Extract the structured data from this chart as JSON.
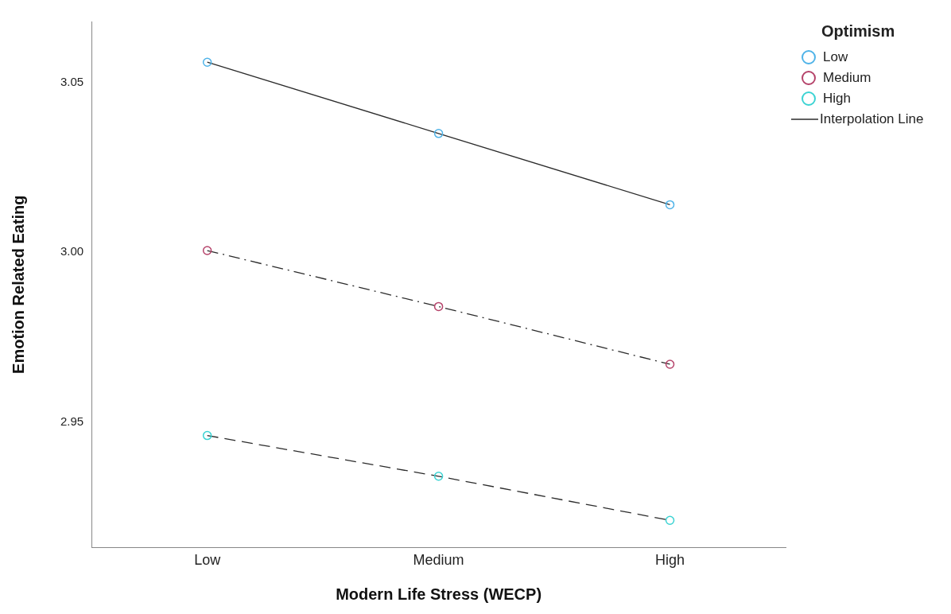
{
  "chart_data": {
    "type": "line",
    "xlabel": "Modern Life Stress (WECP)",
    "ylabel": "Emotion Related Eating",
    "legend_title": "Optimism",
    "legend": "top right",
    "marker": "circle",
    "grid": false,
    "categories": [
      "Low",
      "Medium",
      "High"
    ],
    "ylim": [
      2.913,
      3.068
    ],
    "yticks": [
      {
        "value": 2.95,
        "label": "2.95"
      },
      {
        "value": 3.0,
        "label": "3.00"
      },
      {
        "value": 3.05,
        "label": "3.05"
      }
    ],
    "series": [
      {
        "name": "Low",
        "color": "#4fb3e8",
        "values": [
          3.056,
          3.035,
          3.014
        ],
        "line_style": "solid"
      },
      {
        "name": "Medium",
        "color": "#b5436a",
        "values": [
          3.0005,
          2.984,
          2.967
        ],
        "line_style": "dashdot"
      },
      {
        "name": "High",
        "color": "#3cd3d3",
        "values": [
          2.946,
          2.934,
          2.921
        ],
        "line_style": "dashed"
      }
    ],
    "annotations": [
      "Interpolation Line"
    ]
  }
}
